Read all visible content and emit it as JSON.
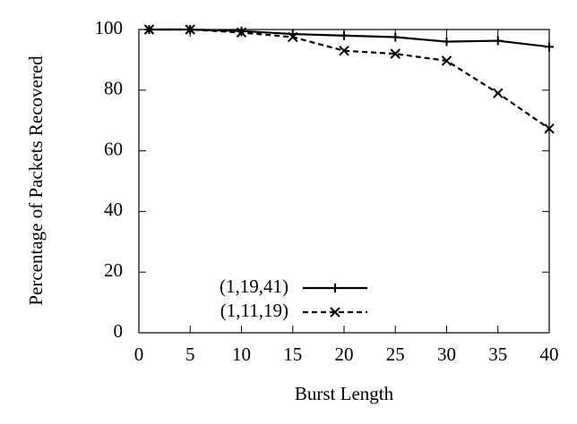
{
  "chart_data": {
    "type": "line",
    "x_label": "Burst Length",
    "y_label": "Percentage of Packets Recovered",
    "x": [
      1,
      5,
      10,
      15,
      20,
      25,
      30,
      35,
      40
    ],
    "series": [
      {
        "name": "(1,19,41)",
        "color": "#000000",
        "dashed": false,
        "marker": "plus",
        "values": [
          100,
          100,
          99.5,
          98.5,
          98,
          97.5,
          96,
          96.3,
          94.3
        ]
      },
      {
        "name": "(1,11,19)",
        "color": "#000000",
        "dashed": true,
        "marker": "cross",
        "values": [
          100,
          100,
          99,
          97.5,
          93,
          92,
          89.7,
          79,
          67.3
        ]
      }
    ],
    "xlim": [
      0,
      40
    ],
    "xticks": [
      0,
      5,
      10,
      15,
      20,
      25,
      30,
      35,
      40
    ],
    "ylim": [
      0,
      100
    ],
    "yticks": [
      0,
      20,
      40,
      60,
      80,
      100
    ],
    "grid": false,
    "legend": "lower left"
  }
}
